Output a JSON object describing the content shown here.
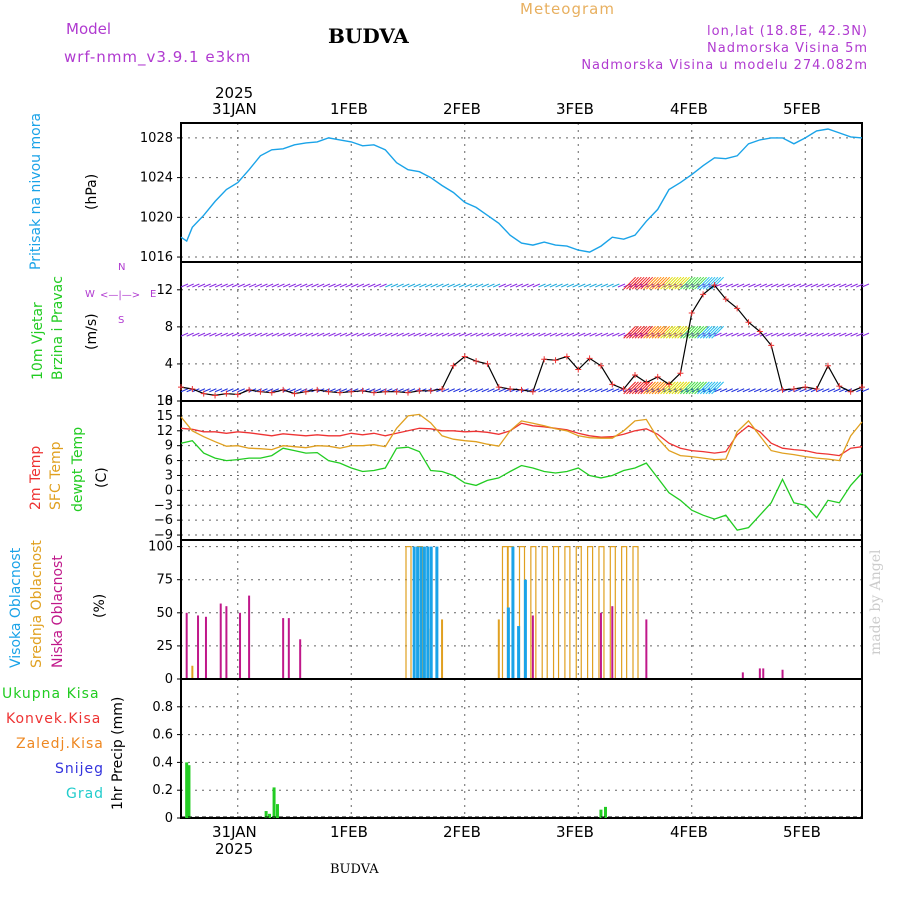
{
  "header": {
    "model_label": "Model",
    "model_name": "wrf-nmm_v3.9.1  e3km",
    "station": "BUDVA",
    "title": "Meteogram",
    "lonlat": "lon,lat (18.8E, 42.3N)",
    "elevation": "Nadmorska Visina 5m",
    "model_elevation": "Nadmorska Visina u modelu 274.082m"
  },
  "footer": {
    "station": "BUDVA"
  },
  "watermark": "made by Angel",
  "colors": {
    "pressure": "#1aa3e8",
    "wind_main": "#8a2be2",
    "temp2m": "#ee3333",
    "sfc": "#e0a020",
    "dew": "#22cc22",
    "high": "#1aa3e8",
    "mid": "#e0a020",
    "low": "#c0188a",
    "precip_total": "#22cc22",
    "precip_conv": "#ee3333",
    "precip_frz": "#ee8822",
    "snow": "#3333dd",
    "hail": "#22cccc"
  },
  "time_axis": {
    "year_label": "2025",
    "days": [
      "31JAN",
      "1FEB",
      "2FEB",
      "3FEB",
      "4FEB",
      "5FEB"
    ],
    "start_day": -0.5,
    "end_day": 5.5
  },
  "chart_data": [
    {
      "type": "line",
      "id": "pressure",
      "title": "Pritisak na nivou mora",
      "ylabel": "(hPa)",
      "ylim": [
        1015.5,
        1029.5
      ],
      "ticks": [
        1016,
        1020,
        1024,
        1028
      ],
      "x": [
        -0.5,
        -0.45,
        -0.4,
        -0.3,
        -0.2,
        -0.1,
        0,
        0.1,
        0.2,
        0.3,
        0.4,
        0.5,
        0.6,
        0.7,
        0.8,
        0.9,
        1.0,
        1.1,
        1.2,
        1.3,
        1.4,
        1.5,
        1.6,
        1.7,
        1.8,
        1.9,
        2.0,
        2.1,
        2.2,
        2.3,
        2.4,
        2.5,
        2.6,
        2.7,
        2.8,
        2.9,
        3.0,
        3.1,
        3.2,
        3.3,
        3.4,
        3.5,
        3.6,
        3.7,
        3.8,
        3.9,
        4.0,
        4.1,
        4.2,
        4.3,
        4.4,
        4.5,
        4.6,
        4.7,
        4.8,
        4.9,
        5.0,
        5.1,
        5.2,
        5.3,
        5.4,
        5.5
      ],
      "values": [
        1018,
        1017.6,
        1019,
        1020.2,
        1021.6,
        1022.8,
        1023.5,
        1024.8,
        1026.2,
        1026.8,
        1026.9,
        1027.3,
        1027.5,
        1027.6,
        1028,
        1027.8,
        1027.6,
        1027.2,
        1027.3,
        1026.8,
        1025.5,
        1024.8,
        1024.6,
        1024,
        1023.2,
        1022.5,
        1021.5,
        1021,
        1020.2,
        1019.4,
        1018.2,
        1017.4,
        1017.2,
        1017.5,
        1017.2,
        1017.1,
        1016.7,
        1016.5,
        1017.1,
        1018,
        1017.8,
        1018.2,
        1019.6,
        1020.8,
        1022.8,
        1023.5,
        1024.3,
        1025.2,
        1026,
        1025.9,
        1026.2,
        1027.4,
        1027.8,
        1028,
        1028,
        1027.4,
        1028,
        1028.7,
        1028.9,
        1028.5,
        1028.1,
        1028
      ]
    },
    {
      "type": "line",
      "id": "wind",
      "title": "10m Vjetar Brzina i Pravac",
      "ylabel": "(m/s)",
      "compass": [
        "N",
        "W",
        "E",
        "S"
      ],
      "ylim": [
        0,
        15
      ],
      "ticks": [
        0,
        4,
        8,
        12
      ],
      "x": [
        -0.5,
        -0.4,
        -0.3,
        -0.2,
        -0.1,
        0,
        0.1,
        0.2,
        0.3,
        0.4,
        0.5,
        0.6,
        0.7,
        0.8,
        0.9,
        1.0,
        1.1,
        1.2,
        1.3,
        1.4,
        1.5,
        1.6,
        1.7,
        1.8,
        1.9,
        2.0,
        2.1,
        2.2,
        2.3,
        2.4,
        2.5,
        2.6,
        2.7,
        2.8,
        2.9,
        3.0,
        3.1,
        3.2,
        3.3,
        3.4,
        3.5,
        3.6,
        3.7,
        3.8,
        3.9,
        4.0,
        4.1,
        4.2,
        4.3,
        4.4,
        4.5,
        4.6,
        4.7,
        4.8,
        4.9,
        5.0,
        5.1,
        5.2,
        5.3,
        5.4,
        5.5
      ],
      "values": [
        1.5,
        1.3,
        0.8,
        0.6,
        0.8,
        0.7,
        1.2,
        1.0,
        0.9,
        1.2,
        0.8,
        1.0,
        1.2,
        1.0,
        0.9,
        1.0,
        1.1,
        0.9,
        1.0,
        1.0,
        0.9,
        1.1,
        1.1,
        1.3,
        3.8,
        4.8,
        4.3,
        4.0,
        1.5,
        1.3,
        1.2,
        1.0,
        4.5,
        4.4,
        4.8,
        3.4,
        4.6,
        3.8,
        1.8,
        1.3,
        2.8,
        2.0,
        2.6,
        1.8,
        3.0,
        9.5,
        11.5,
        12.5,
        11.0,
        10.0,
        8.5,
        7.5,
        6.0,
        1.2,
        1.3,
        1.5,
        1.3,
        3.8,
        1.6,
        1.0,
        1.5
      ]
    },
    {
      "type": "line",
      "id": "temperature",
      "series_labels": [
        "2m Temp",
        "SFC Temp",
        "dewpt Temp"
      ],
      "ylabel": "(C)",
      "ylim": [
        -10,
        18
      ],
      "ticks": [
        -9,
        -6,
        -3,
        0,
        3,
        6,
        9,
        12,
        15,
        18
      ],
      "x": [
        -0.5,
        -0.4,
        -0.3,
        -0.2,
        -0.1,
        0,
        0.1,
        0.2,
        0.3,
        0.4,
        0.5,
        0.6,
        0.7,
        0.8,
        0.9,
        1.0,
        1.1,
        1.2,
        1.3,
        1.4,
        1.5,
        1.6,
        1.7,
        1.8,
        1.9,
        2.0,
        2.1,
        2.2,
        2.3,
        2.4,
        2.5,
        2.6,
        2.7,
        2.8,
        2.9,
        3.0,
        3.1,
        3.2,
        3.3,
        3.4,
        3.5,
        3.6,
        3.7,
        3.8,
        3.9,
        4.0,
        4.1,
        4.2,
        4.3,
        4.4,
        4.5,
        4.6,
        4.7,
        4.8,
        4.9,
        5.0,
        5.1,
        5.2,
        5.3,
        5.4,
        5.5
      ],
      "series": [
        {
          "name": "2m Temp",
          "values": [
            12.5,
            12.3,
            11.8,
            11.8,
            11.5,
            11.8,
            11.6,
            11.3,
            11.0,
            11.4,
            11.2,
            11.0,
            11.2,
            11.0,
            11.0,
            11.5,
            11.2,
            11.5,
            11.0,
            11.5,
            12.0,
            12.5,
            12.4,
            12.0,
            12.0,
            11.8,
            11.9,
            11.7,
            11.3,
            12.0,
            13.5,
            13.0,
            12.8,
            12.5,
            12.2,
            11.5,
            11.0,
            10.7,
            10.8,
            11.3,
            12.0,
            12.4,
            11.3,
            9.5,
            8.5,
            8.0,
            7.8,
            7.5,
            7.8,
            11.2,
            13.0,
            11.8,
            9.5,
            8.5,
            8.2,
            8.0,
            7.5,
            7.3,
            7.0,
            8.5,
            8.8
          ]
        },
        {
          "name": "SFC Temp",
          "values": [
            14.8,
            12.0,
            10.8,
            9.8,
            8.9,
            9.0,
            8.5,
            8.4,
            8.2,
            9.0,
            8.8,
            8.6,
            9.0,
            8.9,
            8.5,
            9.0,
            9.0,
            9.2,
            8.8,
            12.5,
            15.0,
            15.3,
            13.6,
            11.0,
            10.3,
            10.0,
            9.8,
            9.3,
            8.9,
            12.0,
            14.0,
            13.5,
            13.0,
            12.4,
            12.0,
            11.0,
            10.6,
            10.5,
            10.5,
            12.0,
            14.0,
            14.3,
            10.5,
            8.0,
            7.0,
            6.8,
            6.5,
            6.2,
            6.3,
            11.8,
            14.0,
            11.0,
            8.0,
            7.5,
            7.2,
            6.8,
            6.5,
            6.3,
            6.0,
            11.0,
            13.8
          ]
        },
        {
          "name": "dewpt Temp",
          "values": [
            9.5,
            10.0,
            7.5,
            6.5,
            6.0,
            6.2,
            6.5,
            6.5,
            7.0,
            8.5,
            8.0,
            7.5,
            7.6,
            6.0,
            5.5,
            4.5,
            3.8,
            4.0,
            4.5,
            8.5,
            8.7,
            7.8,
            4.0,
            3.8,
            3.0,
            1.5,
            1.0,
            2.0,
            2.5,
            3.8,
            5.0,
            4.5,
            3.8,
            3.5,
            3.8,
            4.5,
            3.0,
            2.5,
            3.0,
            4.0,
            4.5,
            5.5,
            2.5,
            -0.5,
            -2.0,
            -4.0,
            -5.0,
            -5.8,
            -5.0,
            -8.0,
            -7.5,
            -5.0,
            -2.5,
            2.2,
            -2.5,
            -3.0,
            -5.5,
            -2.0,
            -2.5,
            1.0,
            3.5
          ]
        }
      ]
    },
    {
      "type": "bar",
      "id": "clouds",
      "series_labels": [
        "Visoka Oblacnost",
        "Srednja Oblacnost",
        "Niska Oblacnost"
      ],
      "ylabel": "(%)",
      "ylim": [
        0,
        105
      ],
      "ticks": [
        0,
        25,
        50,
        75,
        100
      ],
      "series": [
        {
          "name": "Niska Oblacnost",
          "x": [
            -0.45,
            -0.35,
            -0.28,
            -0.15,
            -0.1,
            0.02,
            0.1,
            0.4,
            0.45,
            0.55,
            2.6,
            3.2,
            3.3,
            3.6,
            4.45,
            4.6,
            4.63,
            4.8
          ],
          "values": [
            50,
            48,
            47,
            57,
            55,
            50,
            63,
            46,
            46,
            30,
            48,
            50,
            55,
            45,
            5,
            8,
            8,
            7
          ]
        },
        {
          "name": "Srednja Oblacnost",
          "x": [
            -0.4,
            1.5,
            1.6,
            1.7,
            1.8,
            2.3,
            2.35,
            2.4,
            2.5,
            2.6,
            2.7,
            2.8,
            2.9,
            3.0,
            3.1,
            3.2,
            3.3,
            3.4,
            3.5
          ],
          "values": [
            10,
            100,
            100,
            38,
            45,
            45,
            100,
            100,
            100,
            100,
            100,
            100,
            100,
            100,
            100,
            100,
            100,
            100,
            100
          ]
        },
        {
          "name": "Visoka Oblacnost",
          "x": [
            1.55,
            1.58,
            1.61,
            1.64,
            1.67,
            1.7,
            1.75,
            2.38,
            2.42,
            2.47,
            2.53
          ],
          "values": [
            100,
            100,
            100,
            100,
            100,
            100,
            100,
            54,
            100,
            40,
            75
          ]
        }
      ]
    },
    {
      "type": "bar",
      "id": "precip",
      "series_labels": [
        "Ukupna Kisa",
        "Konvek.Kisa",
        "Zaledj.Kisa",
        "Snijeg",
        "Grad"
      ],
      "ylabel": "1hr Precip (mm)",
      "ylim": [
        0,
        1.0
      ],
      "ticks": [
        0,
        0.2,
        0.4,
        0.6,
        0.8
      ],
      "x": [
        -0.45,
        -0.43,
        0.25,
        0.28,
        0.32,
        0.35,
        3.2,
        3.24
      ],
      "values": [
        0.4,
        0.38,
        0.05,
        0.03,
        0.22,
        0.1,
        0.06,
        0.08
      ]
    }
  ]
}
